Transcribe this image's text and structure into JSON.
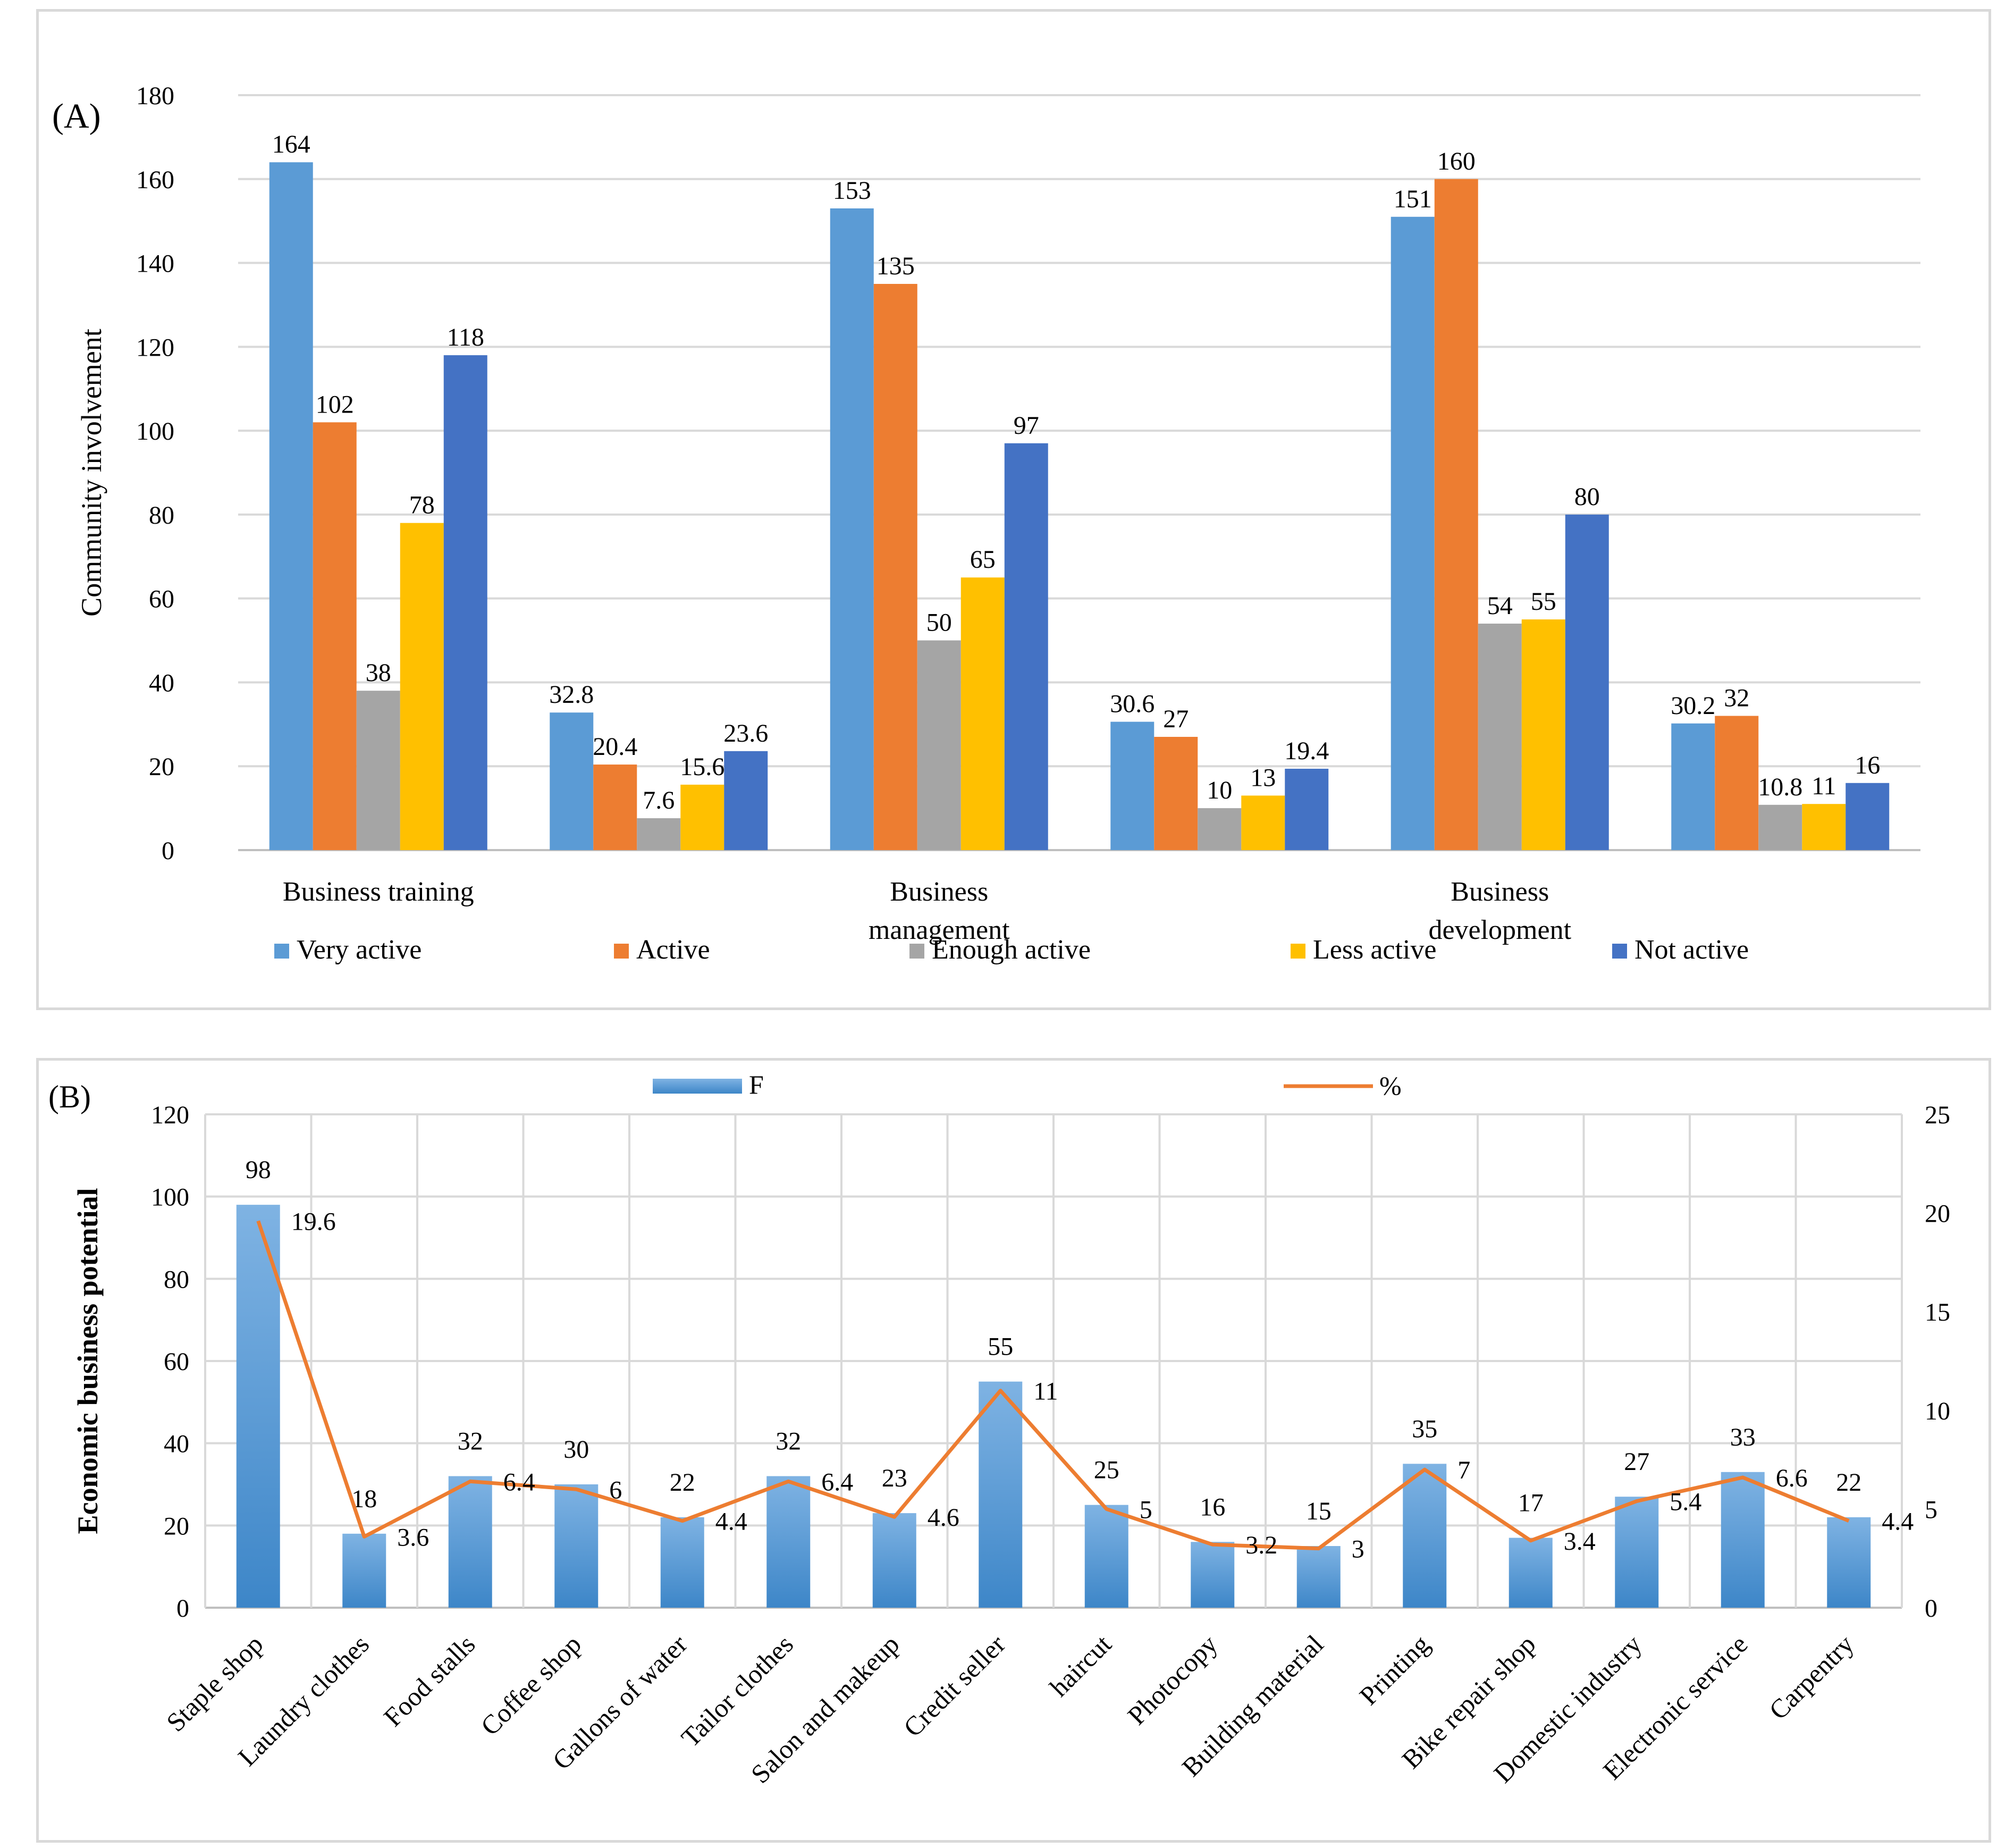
{
  "chart_data": [
    {
      "type": "bar",
      "panel_label": "(A)",
      "title": "",
      "xlabel": "",
      "ylabel": "Community involvement",
      "ylim": [
        0,
        180
      ],
      "yticks": [
        0,
        20,
        40,
        60,
        80,
        100,
        120,
        140,
        160,
        180
      ],
      "grid": true,
      "legend_position": "bottom",
      "categories": [
        "Business training",
        "",
        "Business management",
        "",
        "Business development",
        ""
      ],
      "category_label_lines": [
        [
          "Business training"
        ],
        [],
        [
          "Business",
          "management"
        ],
        [],
        [
          "Business",
          "development"
        ],
        []
      ],
      "series": [
        {
          "name": "Very active",
          "color": "#5b9bd5",
          "values": [
            164,
            32.8,
            153,
            30.6,
            151,
            30.2
          ]
        },
        {
          "name": "Active",
          "color": "#ed7d31",
          "values": [
            102,
            20.4,
            135,
            27,
            160,
            32
          ]
        },
        {
          "name": "Enough active",
          "color": "#a5a5a5",
          "values": [
            38,
            7.6,
            50,
            10,
            54,
            10.8
          ]
        },
        {
          "name": "Less active",
          "color": "#ffc000",
          "values": [
            78,
            15.6,
            65,
            13,
            55,
            11
          ]
        },
        {
          "name": "Not active",
          "color": "#4472c4",
          "values": [
            118,
            23.6,
            97,
            19.4,
            80,
            16
          ]
        }
      ]
    },
    {
      "type": "bar+line",
      "panel_label": "(B)",
      "title": "",
      "xlabel": "",
      "ylabel": "Economic business potential",
      "ylim": [
        0,
        120
      ],
      "yticks": [
        0,
        20,
        40,
        60,
        80,
        100,
        120
      ],
      "y2lim": [
        0,
        25
      ],
      "y2ticks": [
        0,
        5,
        10,
        15,
        20,
        25
      ],
      "grid": true,
      "legend_position": "top",
      "categories": [
        "Staple shop",
        "Laundry clothes",
        "Food stalls",
        "Coffee shop",
        "Gallons of water",
        "Tailor clothes",
        "Salon and makeup",
        "Credit seller",
        "haircut",
        "Photocopy",
        "Building material",
        "Printing",
        "Bike repair shop",
        "Domestic industry",
        "Electronic service",
        "Carpentry"
      ],
      "series": [
        {
          "name": "F",
          "type": "bar",
          "axis": "left",
          "color": "#5b9bd5",
          "values": [
            98,
            18,
            32,
            30,
            22,
            32,
            23,
            55,
            25,
            16,
            15,
            35,
            17,
            27,
            33,
            22
          ]
        },
        {
          "name": "%",
          "type": "line",
          "axis": "right",
          "color": "#ed7d31",
          "values": [
            19.6,
            3.6,
            6.4,
            6,
            4.4,
            6.4,
            4.6,
            11,
            5,
            3.2,
            3,
            7,
            3.4,
            5.4,
            6.6,
            4.4
          ]
        }
      ]
    }
  ]
}
